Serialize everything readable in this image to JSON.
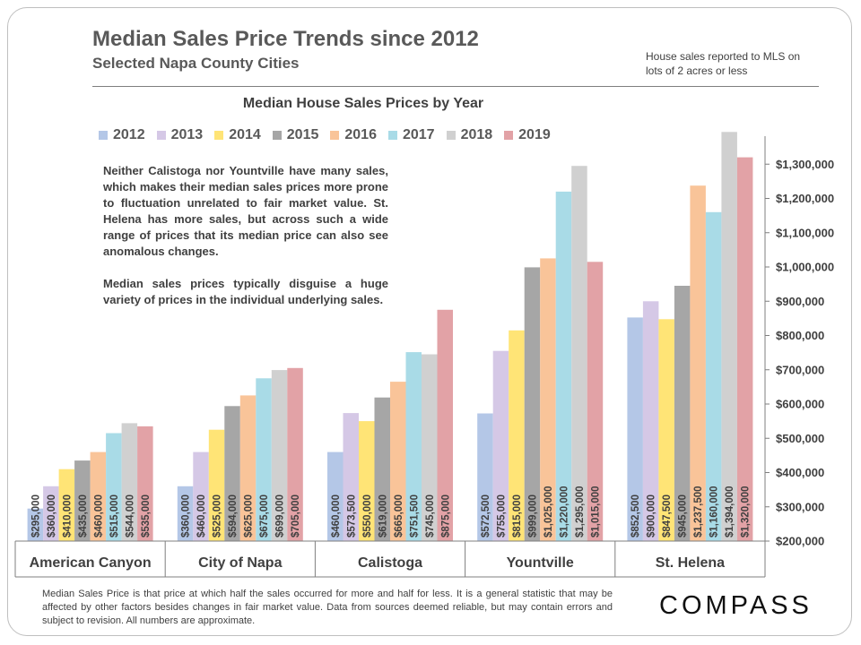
{
  "header": {
    "title": "Median Sales Price Trends since 2012",
    "subtitle": "Selected Napa County  Cities",
    "note": "House sales reported to MLS on lots of 2 acres or less"
  },
  "commentary": [
    "Neither Calistoga nor Yountville have many sales, which makes their median sales prices more prone to fluctuation unrelated to fair market value. St. Helena has more sales, but across such a wide range of prices that its median price can also see anomalous changes.",
    "Median sales prices typically disguise a huge variety of prices in the individual underlying sales."
  ],
  "footnote": "Median Sales Price is that price at which half the sales occurred for more and half for less. It is a general statistic that may be affected by other factors besides changes in fair market value. Data from sources deemed reliable, but may contain errors and subject to revision.  All numbers are approximate.",
  "logo": {
    "text": "COMPASS"
  },
  "chart_data": {
    "type": "bar",
    "title": "Median House Sales Prices by Year",
    "categories": [
      "American Canyon",
      "City of Napa",
      "Calistoga",
      "Yountville",
      "St. Helena"
    ],
    "series": [
      {
        "name": "2012",
        "color": "#b4c7e7",
        "values": [
          295000,
          360000,
          460000,
          572500,
          852500
        ],
        "labels": [
          "$295,000",
          "$360,000",
          "$460,000",
          "$572,500",
          "$852,500"
        ]
      },
      {
        "name": "2013",
        "color": "#d5c8e6",
        "values": [
          360000,
          460000,
          573500,
          755000,
          900000
        ],
        "labels": [
          "$360,000",
          "$460,000",
          "$573,500",
          "$755,000",
          "$900,000"
        ]
      },
      {
        "name": "2014",
        "color": "#ffe476",
        "values": [
          410000,
          525000,
          550000,
          815000,
          847500
        ],
        "labels": [
          "$410,000",
          "$525,000",
          "$550,000",
          "$815,000",
          "$847,500"
        ]
      },
      {
        "name": "2015",
        "color": "#a6a6a6",
        "values": [
          435000,
          594000,
          619000,
          999000,
          945000
        ],
        "labels": [
          "$435,000",
          "$594,000",
          "$619,000",
          "$999,000",
          "$945,000"
        ]
      },
      {
        "name": "2016",
        "color": "#f9c499",
        "values": [
          460000,
          625000,
          665000,
          1025000,
          1237500
        ],
        "labels": [
          "$460,000",
          "$625,000",
          "$665,000",
          "$1,025,000",
          "$1,237,500"
        ]
      },
      {
        "name": "2017",
        "color": "#a9dbe7",
        "values": [
          515000,
          675000,
          751500,
          1220000,
          1160000
        ],
        "labels": [
          "$515,000",
          "$675,000",
          "$751,500",
          "$1,220,000",
          "$1,160,000"
        ]
      },
      {
        "name": "2018",
        "color": "#d0d0d0",
        "values": [
          544000,
          699000,
          745000,
          1295000,
          1394000
        ],
        "labels": [
          "$544,000",
          "$699,000",
          "$745,000",
          "$1,295,000",
          "$1,394,000"
        ]
      },
      {
        "name": "2019",
        "color": "#e2a2a6",
        "values": [
          535000,
          705000,
          875000,
          1015000,
          1320000
        ],
        "labels": [
          "$535,000",
          "$705,000",
          "$875,000",
          "$1,015,000",
          "$1,320,000"
        ]
      }
    ],
    "ylim": [
      200000,
      1400000
    ],
    "yticks": [
      200000,
      300000,
      400000,
      500000,
      600000,
      700000,
      800000,
      900000,
      1000000,
      1100000,
      1200000,
      1300000
    ],
    "ytick_labels": [
      "$200,000",
      "$300,000",
      "$400,000",
      "$500,000",
      "$600,000",
      "$700,000",
      "$800,000",
      "$900,000",
      "$1,000,000",
      "$1,100,000",
      "$1,200,000",
      "$1,300,000"
    ],
    "y_axis_side": "right",
    "grid": false,
    "legend": "top"
  }
}
